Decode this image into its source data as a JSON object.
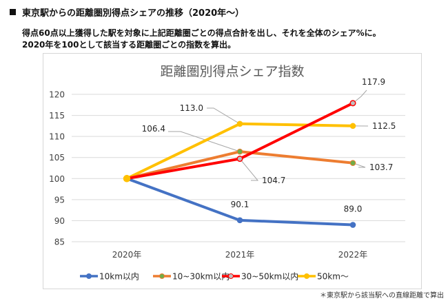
{
  "heading": "東京駅からの距離圏別得点シェアの推移（2020年～）",
  "description": [
    "得点60点以上獲得した駅を対象に上記距離圏ごとの得点合計を出し、それを全体のシェア%に。",
    "2020年を100として該当する距離圏ごとの指数を算出。"
  ],
  "footnote": "＊東京駅から該当駅への直線距離で算出",
  "chart_data": {
    "type": "line",
    "title": "距離圏別得点シェア指数",
    "xlabel": "",
    "ylabel": "",
    "categories": [
      "2020年",
      "2021年",
      "2022年"
    ],
    "ylim": [
      85,
      120
    ],
    "yticks": [
      85,
      90,
      95,
      100,
      105,
      110,
      115,
      120
    ],
    "grid": true,
    "legend_position": "bottom",
    "series": [
      {
        "name": "10km以内",
        "values": [
          100,
          90.1,
          89.0
        ],
        "color": "#4472C4",
        "marker_fill": "#4472C4",
        "labels": [
          "",
          "90.1",
          "89.0"
        ]
      },
      {
        "name": "10~30km以内",
        "values": [
          100,
          106.4,
          103.7
        ],
        "color": "#ED7D31",
        "marker_fill": "#70AD47",
        "labels": [
          "",
          "106.4",
          "103.7"
        ]
      },
      {
        "name": "30~50km以内",
        "values": [
          100,
          104.7,
          117.9
        ],
        "color": "#FF0000",
        "marker_fill": "#BFBFBF",
        "labels": [
          "",
          "104.7",
          "117.9"
        ]
      },
      {
        "name": "50km～",
        "values": [
          100,
          113.0,
          112.5
        ],
        "color": "#FFC000",
        "marker_fill": "#FFC000",
        "labels": [
          "",
          "113.0",
          "112.5"
        ]
      }
    ]
  }
}
